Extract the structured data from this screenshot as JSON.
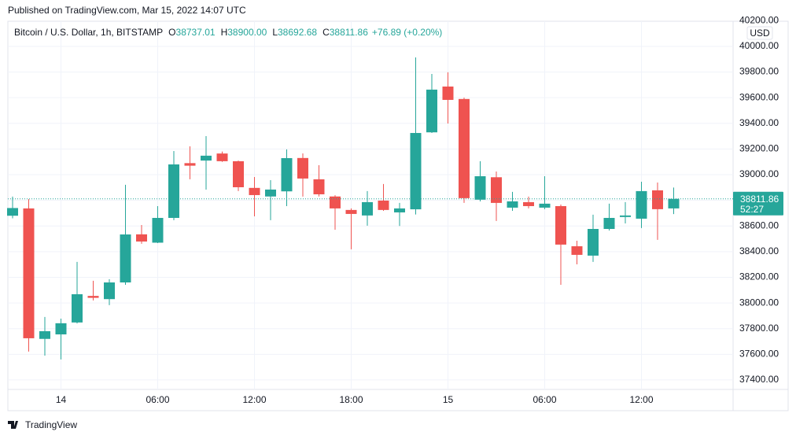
{
  "header": {
    "published": "Published on TradingView.com, Mar 15, 2022 14:07 UTC"
  },
  "chart_data": {
    "type": "candlestick",
    "title": "Bitcoin / U.S. Dollar, 1h, BITSTAMP",
    "ohlc_legend": [
      {
        "key": "O",
        "value": "38737.01"
      },
      {
        "key": "H",
        "value": "38900.00"
      },
      {
        "key": "L",
        "value": "38692.68"
      },
      {
        "key": "C",
        "value": "38811.86"
      }
    ],
    "change": "+76.89 (+0.20%)",
    "currency": "USD",
    "up_color": "#26a69a",
    "down_color": "#ef5350",
    "categories": [
      null,
      null,
      null,
      "14",
      null,
      null,
      null,
      null,
      null,
      "06:00",
      null,
      null,
      null,
      null,
      null,
      "12:00",
      null,
      null,
      null,
      null,
      null,
      "18:00",
      null,
      null,
      null,
      null,
      null,
      "15",
      null,
      null,
      null,
      null,
      null,
      "06:00",
      null,
      null,
      null,
      null,
      null,
      "12:00",
      null,
      null
    ],
    "open": [
      38680,
      38737,
      37720,
      37755,
      37848,
      38055,
      38030,
      38160,
      38535,
      38470,
      38663,
      39090,
      39110,
      39165,
      39105,
      38897,
      38830,
      38870,
      39130,
      38964,
      38830,
      38725,
      38682,
      38798,
      38706,
      38730,
      39330,
      39687,
      39590,
      38805,
      38980,
      38743,
      38786,
      38743,
      38755,
      38442,
      38369,
      38577,
      38670,
      38657,
      38878,
      38737.01
    ],
    "high": [
      38829,
      38810,
      37891,
      37878,
      38320,
      38173,
      38185,
      38921,
      38608,
      38755,
      39184,
      39221,
      39301,
      39180,
      39110,
      38982,
      38957,
      39197,
      39166,
      39074,
      38840,
      38737,
      38872,
      38927,
      38780,
      39914,
      39785,
      39798,
      39600,
      39105,
      39025,
      38866,
      38829,
      38988,
      38767,
      38485,
      38688,
      38774,
      38786,
      38945,
      38939,
      38900
    ],
    "low": [
      38660,
      37621,
      37590,
      37560,
      37840,
      38020,
      37983,
      38142,
      38461,
      38467,
      38645,
      38964,
      38884,
      39100,
      38872,
      38675,
      38645,
      38755,
      38829,
      38830,
      38571,
      38418,
      38602,
      38718,
      38600,
      38690,
      39325,
      39399,
      38780,
      38792,
      38639,
      38718,
      38737,
      38731,
      38142,
      38301,
      38320,
      38565,
      38620,
      38584,
      38492,
      38692.68
    ],
    "close": [
      38740,
      37725,
      37780,
      37842,
      38068,
      38040,
      38160,
      38534,
      38479,
      38663,
      39080,
      39070,
      39148,
      39105,
      38902,
      38841,
      38884,
      39129,
      38970,
      38847,
      38737,
      38694,
      38786,
      38725,
      38737,
      39325,
      39663,
      39583,
      38817,
      38988,
      38780,
      38792,
      38755,
      38774,
      38455,
      38375,
      38577,
      38663,
      38682,
      38872,
      38731,
      38811.86
    ],
    "last_price": 38811.86,
    "countdown": "52:27",
    "ylim": [
      37326,
      40196
    ],
    "yticks": [
      {
        "value": 37400,
        "label": "37400.00"
      },
      {
        "value": 37600,
        "label": "37600.00"
      },
      {
        "value": 37800,
        "label": "37800.00"
      },
      {
        "value": 38000,
        "label": "38000.00"
      },
      {
        "value": 38200,
        "label": "38200.00"
      },
      {
        "value": 38400,
        "label": "38400.00"
      },
      {
        "value": 38600,
        "label": "38600.00"
      },
      {
        "value": 38800,
        "label": "38800.00"
      },
      {
        "value": 39000,
        "label": "39000.00"
      },
      {
        "value": 39200,
        "label": "39200.00"
      },
      {
        "value": 39400,
        "label": "39400.00"
      },
      {
        "value": 39600,
        "label": "39600.00"
      },
      {
        "value": 39800,
        "label": "39800.00"
      },
      {
        "value": 40000,
        "label": "40000.00"
      },
      {
        "value": 40200,
        "label": "40200.00"
      }
    ],
    "grid": true
  },
  "footer": {
    "brand": "TradingView"
  }
}
